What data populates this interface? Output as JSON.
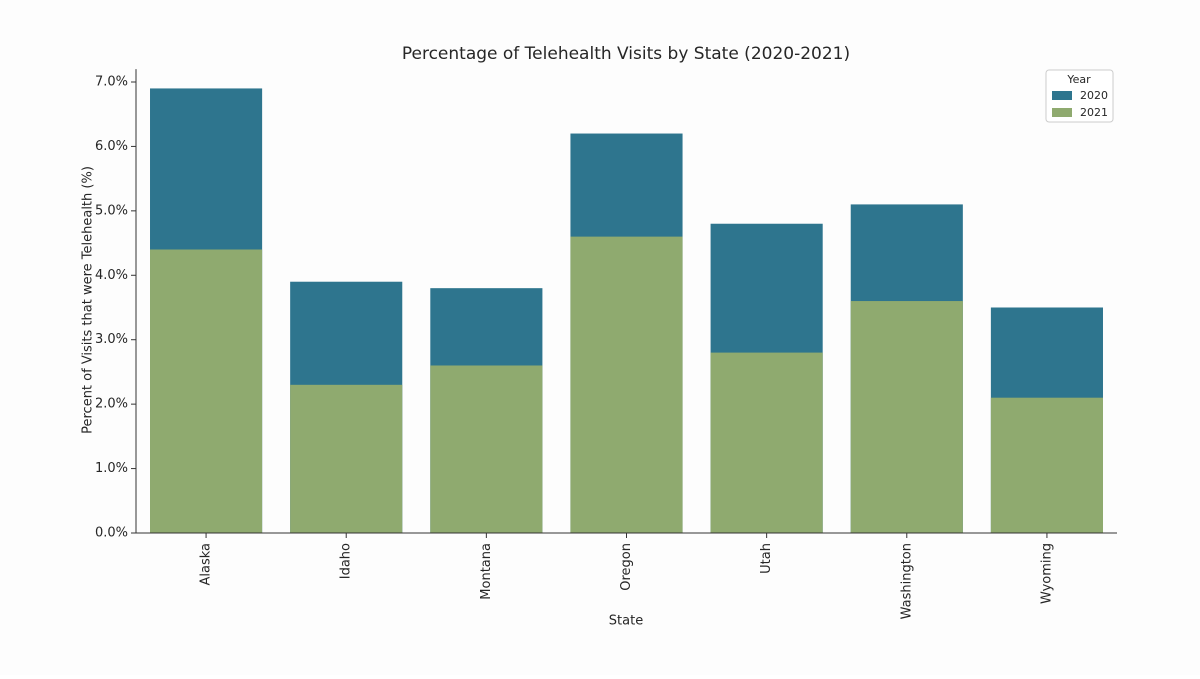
{
  "chart_data": {
    "type": "bar",
    "title": "Percentage of Telehealth Visits by State (2020-2021)",
    "x_label": "State",
    "y_label": "Percent of Visits that were Telehealth (%)",
    "categories": [
      "Alaska",
      "Idaho",
      "Montana",
      "Oregon",
      "Utah",
      "Washington",
      "Wyoming"
    ],
    "series": [
      {
        "name": "2020",
        "color": "#2e758e",
        "values": [
          6.9,
          3.9,
          3.8,
          6.2,
          4.8,
          5.1,
          3.5
        ]
      },
      {
        "name": "2021",
        "color": "#8faa6f",
        "values": [
          4.4,
          2.3,
          2.6,
          4.6,
          2.8,
          3.6,
          2.1
        ]
      }
    ],
    "legend_title": "Year",
    "legend_position": "upper right",
    "ylim": [
      0,
      7.2
    ],
    "yticks": [
      {
        "value": 0,
        "label": "0.0%"
      },
      {
        "value": 1,
        "label": "1.0%"
      },
      {
        "value": 2,
        "label": "2.0%"
      },
      {
        "value": 3,
        "label": "3.0%"
      },
      {
        "value": 4,
        "label": "4.0%"
      },
      {
        "value": 5,
        "label": "5.0%"
      },
      {
        "value": 6,
        "label": "6.0%"
      },
      {
        "value": 7,
        "label": "7.0%"
      }
    ]
  }
}
